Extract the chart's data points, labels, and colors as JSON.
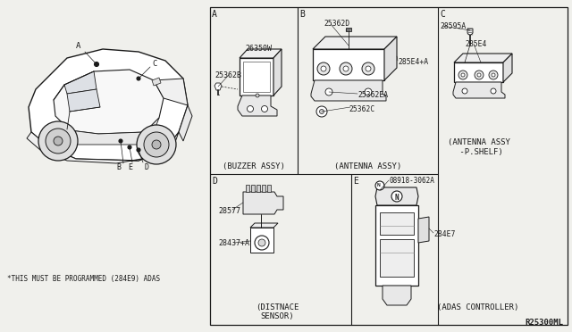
{
  "bg_color": "#f0f0ec",
  "line_color": "#1a1a1a",
  "text_color": "#1a1a1a",
  "fig_width": 6.4,
  "fig_height": 3.72,
  "ref_code": "R25300ML",
  "footnote": "*THIS MUST BE PROGRAMMED (284E9) ADAS",
  "panel_A_label": "A",
  "panel_B_label": "B",
  "panel_C_label": "C",
  "panel_D_label": "D",
  "panel_E_label": "E",
  "caption_A": "(BUZZER ASSY)",
  "caption_B": "(ANTENNA ASSY)",
  "caption_C": "(ANTENNA ASSY\n-P.SHELF)",
  "caption_D": "(DISTNACE\nSENSOR)",
  "caption_E": "(ADAS CONTROLLER)",
  "part_26350W": "26350W",
  "part_25362B": "25362B",
  "part_25362D": "25362D",
  "part_285E4A": "285E4+A",
  "part_25362EA": "25362EA",
  "part_25362C": "25362C",
  "part_28595A": "28595A",
  "part_2B5E4": "2B5E4",
  "part_28577": "28577",
  "part_28437A": "28437+A",
  "part_08918": "08918-3062A",
  "part_N": "N",
  "part_284E7": "284E7"
}
